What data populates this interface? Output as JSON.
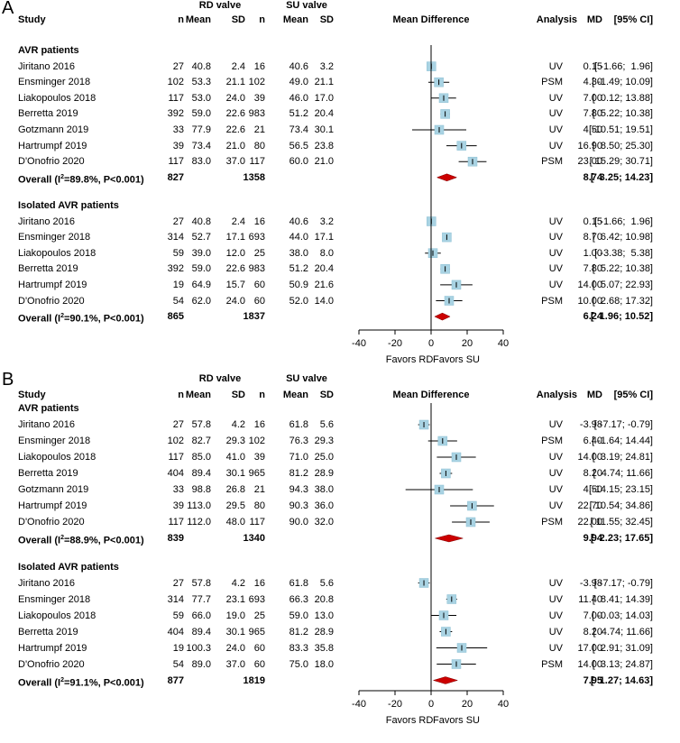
{
  "colors": {
    "box": "#a9d3e3",
    "boxStroke": "#8cbfd3",
    "diamond": "#cc0000",
    "line": "#000000"
  },
  "chart_data": [
    {
      "type": "forest",
      "panel": "A",
      "headers": {
        "group1": "RD valve",
        "group2": "SU valve",
        "study": "Study",
        "n1": "n",
        "mean1": "Mean",
        "sd1": "SD",
        "n2": "n",
        "mean2": "Mean",
        "sd2": "SD",
        "plot": "Mean Difference",
        "analysis": "Analysis",
        "md": "MD",
        "ci": "[95% CI]"
      },
      "axis": {
        "min": -40,
        "max": 40,
        "ticks": [
          -40,
          -20,
          0,
          20,
          40
        ],
        "favor_left": "Favors RD",
        "favor_right": "Favors SU"
      },
      "subgroups": [
        {
          "title": "AVR patients",
          "studies": [
            {
              "study": "Jiritano 2016",
              "n1": 27,
              "mean1": "40.8",
              "sd1": "2.4",
              "n2": 16,
              "mean2": "40.6",
              "sd2": "3.2",
              "analysis": "UV",
              "md": 0.15,
              "lo": -1.66,
              "hi": 1.96,
              "md_text": "0.15",
              "ci_text": "[ -1.66;  1.96]"
            },
            {
              "study": "Ensminger 2018",
              "n1": 102,
              "mean1": "53.3",
              "sd1": "21.1",
              "n2": 102,
              "mean2": "49.0",
              "sd2": "21.1",
              "analysis": "PSM",
              "md": 4.3,
              "lo": -1.49,
              "hi": 10.09,
              "md_text": "4.30",
              "ci_text": "[ -1.49; 10.09]"
            },
            {
              "study": "Liakopoulos 2018",
              "n1": 117,
              "mean1": "53.0",
              "sd1": "24.0",
              "n2": 39,
              "mean2": "46.0",
              "sd2": "17.0",
              "analysis": "UV",
              "md": 7.0,
              "lo": 0.12,
              "hi": 13.88,
              "md_text": "7.00",
              "ci_text": "[  0.12; 13.88]"
            },
            {
              "study": "Berretta 2019",
              "n1": 392,
              "mean1": "59.0",
              "sd1": "22.6",
              "n2": 983,
              "mean2": "51.2",
              "sd2": "20.4",
              "analysis": "UV",
              "md": 7.8,
              "lo": 5.22,
              "hi": 10.38,
              "md_text": "7.80",
              "ci_text": "[  5.22; 10.38]"
            },
            {
              "study": "Gotzmann 2019",
              "n1": 33,
              "mean1": "77.9",
              "sd1": "22.6",
              "n2": 21,
              "mean2": "73.4",
              "sd2": "30.1",
              "analysis": "UV",
              "md": 4.5,
              "lo": -10.51,
              "hi": 19.51,
              "md_text": "4.50",
              "ci_text": "[-10.51; 19.51]"
            },
            {
              "study": "Hartrumpf 2019",
              "n1": 39,
              "mean1": "73.4",
              "sd1": "21.0",
              "n2": 80,
              "mean2": "56.5",
              "sd2": "23.8",
              "analysis": "UV",
              "md": 16.9,
              "lo": 8.5,
              "hi": 25.3,
              "md_text": "16.90",
              "ci_text": "[  8.50; 25.30]"
            },
            {
              "study": "D'Onofrio 2020",
              "n1": 117,
              "mean1": "83.0",
              "sd1": "37.0",
              "n2": 117,
              "mean2": "60.0",
              "sd2": "21.0",
              "analysis": "PSM",
              "md": 23.0,
              "lo": 15.29,
              "hi": 30.71,
              "md_text": "23.00",
              "ci_text": "[ 15.29; 30.71]"
            }
          ],
          "overall": {
            "label_pre": "Overall (I",
            "sup": "2",
            "label_post": "=89.8%, P<0.001)",
            "n1": 827,
            "n2": 1358,
            "md": 8.74,
            "lo": 3.25,
            "hi": 14.23,
            "md_text": "8.74",
            "ci_text": "[  3.25; 14.23]"
          }
        },
        {
          "title": "Isolated AVR patients",
          "studies": [
            {
              "study": "Jiritano 2016",
              "n1": 27,
              "mean1": "40.8",
              "sd1": "2.4",
              "n2": 16,
              "mean2": "40.6",
              "sd2": "3.2",
              "analysis": "UV",
              "md": 0.15,
              "lo": -1.66,
              "hi": 1.96,
              "md_text": "0.15",
              "ci_text": "[ -1.66;  1.96]"
            },
            {
              "study": "Ensminger 2018",
              "n1": 314,
              "mean1": "52.7",
              "sd1": "17.1",
              "n2": 693,
              "mean2": "44.0",
              "sd2": "17.1",
              "analysis": "UV",
              "md": 8.7,
              "lo": 6.42,
              "hi": 10.98,
              "md_text": "8.70",
              "ci_text": "[  6.42; 10.98]"
            },
            {
              "study": "Liakopoulos 2018",
              "n1": 59,
              "mean1": "39.0",
              "sd1": "12.0",
              "n2": 25,
              "mean2": "38.0",
              "sd2": "8.0",
              "analysis": "UV",
              "md": 1.0,
              "lo": -3.38,
              "hi": 5.38,
              "md_text": "1.00",
              "ci_text": "[ -3.38;  5.38]"
            },
            {
              "study": "Berretta 2019",
              "n1": 392,
              "mean1": "59.0",
              "sd1": "22.6",
              "n2": 983,
              "mean2": "51.2",
              "sd2": "20.4",
              "analysis": "UV",
              "md": 7.8,
              "lo": 5.22,
              "hi": 10.38,
              "md_text": "7.80",
              "ci_text": "[  5.22; 10.38]"
            },
            {
              "study": "Hartrumpf 2019",
              "n1": 19,
              "mean1": "64.9",
              "sd1": "15.7",
              "n2": 60,
              "mean2": "50.9",
              "sd2": "21.6",
              "analysis": "UV",
              "md": 14.0,
              "lo": 5.07,
              "hi": 22.93,
              "md_text": "14.00",
              "ci_text": "[  5.07; 22.93]"
            },
            {
              "study": "D'Onofrio 2020",
              "n1": 54,
              "mean1": "62.0",
              "sd1": "24.0",
              "n2": 60,
              "mean2": "52.0",
              "sd2": "14.0",
              "analysis": "PSM",
              "md": 10.0,
              "lo": 2.68,
              "hi": 17.32,
              "md_text": "10.00",
              "ci_text": "[  2.68; 17.32]"
            }
          ],
          "overall": {
            "label_pre": "Overall (I",
            "sup": "2",
            "label_post": "=90.1%, P<0.001)",
            "n1": 865,
            "n2": 1837,
            "md": 6.24,
            "lo": 1.96,
            "hi": 10.52,
            "md_text": "6.24",
            "ci_text": "[  1.96; 10.52]"
          }
        }
      ]
    },
    {
      "type": "forest",
      "panel": "B",
      "headers": {
        "group1": "RD valve",
        "group2": "SU valve",
        "study": "Study",
        "n1": "n",
        "mean1": "Mean",
        "sd1": "SD",
        "n2": "n",
        "mean2": "Mean",
        "sd2": "SD",
        "plot": "Mean Difference",
        "analysis": "Analysis",
        "md": "MD",
        "ci": "[95% CI]"
      },
      "axis": {
        "min": -40,
        "max": 40,
        "ticks": [
          -40,
          -20,
          0,
          20,
          40
        ],
        "favor_left": "Favors RD",
        "favor_right": "Favors SU"
      },
      "subgroups": [
        {
          "title": "AVR patients",
          "studies": [
            {
              "study": "Jiritano 2016",
              "n1": 27,
              "mean1": "57.8",
              "sd1": "4.2",
              "n2": 16,
              "mean2": "61.8",
              "sd2": "5.6",
              "analysis": "UV",
              "md": -3.98,
              "lo": -7.17,
              "hi": -0.79,
              "md_text": "-3.98",
              "ci_text": "[ -7.17; -0.79]"
            },
            {
              "study": "Ensminger 2018",
              "n1": 102,
              "mean1": "82.7",
              "sd1": "29.3",
              "n2": 102,
              "mean2": "76.3",
              "sd2": "29.3",
              "analysis": "PSM",
              "md": 6.4,
              "lo": -1.64,
              "hi": 14.44,
              "md_text": "6.40",
              "ci_text": "[ -1.64; 14.44]"
            },
            {
              "study": "Liakopoulos 2018",
              "n1": 117,
              "mean1": "85.0",
              "sd1": "41.0",
              "n2": 39,
              "mean2": "71.0",
              "sd2": "25.0",
              "analysis": "UV",
              "md": 14.0,
              "lo": 3.19,
              "hi": 24.81,
              "md_text": "14.00",
              "ci_text": "[  3.19; 24.81]"
            },
            {
              "study": "Berretta 2019",
              "n1": 404,
              "mean1": "89.4",
              "sd1": "30.1",
              "n2": 965,
              "mean2": "81.2",
              "sd2": "28.9",
              "analysis": "UV",
              "md": 8.2,
              "lo": 4.74,
              "hi": 11.66,
              "md_text": "8.20",
              "ci_text": "[  4.74; 11.66]"
            },
            {
              "study": "Gotzmann 2019",
              "n1": 33,
              "mean1": "98.8",
              "sd1": "26.8",
              "n2": 21,
              "mean2": "94.3",
              "sd2": "38.0",
              "analysis": "UV",
              "md": 4.5,
              "lo": -14.15,
              "hi": 23.15,
              "md_text": "4.50",
              "ci_text": "[-14.15; 23.15]"
            },
            {
              "study": "Hartrumpf 2019",
              "n1": 39,
              "mean1": "113.0",
              "sd1": "29.5",
              "n2": 80,
              "mean2": "90.3",
              "sd2": "36.0",
              "analysis": "UV",
              "md": 22.7,
              "lo": 10.54,
              "hi": 34.86,
              "md_text": "22.70",
              "ci_text": "[ 10.54; 34.86]"
            },
            {
              "study": "D'Onofrio 2020",
              "n1": 117,
              "mean1": "112.0",
              "sd1": "48.0",
              "n2": 117,
              "mean2": "90.0",
              "sd2": "32.0",
              "analysis": "PSM",
              "md": 22.0,
              "lo": 11.55,
              "hi": 32.45,
              "md_text": "22.00",
              "ci_text": "[ 11.55; 32.45]"
            }
          ],
          "overall": {
            "label_pre": "Overall (I",
            "sup": "2",
            "label_post": "=88.9%, P<0.001)",
            "n1": 839,
            "n2": 1340,
            "md": 9.94,
            "lo": 2.23,
            "hi": 17.65,
            "md_text": "9.94",
            "ci_text": "[  2.23; 17.65]"
          }
        },
        {
          "title": "Isolated AVR patients",
          "studies": [
            {
              "study": "Jiritano 2016",
              "n1": 27,
              "mean1": "57.8",
              "sd1": "4.2",
              "n2": 16,
              "mean2": "61.8",
              "sd2": "5.6",
              "analysis": "UV",
              "md": -3.98,
              "lo": -7.17,
              "hi": -0.79,
              "md_text": "-3.98",
              "ci_text": "[ -7.17; -0.79]"
            },
            {
              "study": "Ensminger 2018",
              "n1": 314,
              "mean1": "77.7",
              "sd1": "23.1",
              "n2": 693,
              "mean2": "66.3",
              "sd2": "20.8",
              "analysis": "UV",
              "md": 11.4,
              "lo": 8.41,
              "hi": 14.39,
              "md_text": "11.40",
              "ci_text": "[  8.41; 14.39]"
            },
            {
              "study": "Liakopoulos 2018",
              "n1": 59,
              "mean1": "66.0",
              "sd1": "19.0",
              "n2": 25,
              "mean2": "59.0",
              "sd2": "13.0",
              "analysis": "UV",
              "md": 7.0,
              "lo": -0.03,
              "hi": 14.03,
              "md_text": "7.00",
              "ci_text": "[ -0.03; 14.03]"
            },
            {
              "study": "Berretta 2019",
              "n1": 404,
              "mean1": "89.4",
              "sd1": "30.1",
              "n2": 965,
              "mean2": "81.2",
              "sd2": "28.9",
              "analysis": "UV",
              "md": 8.2,
              "lo": 4.74,
              "hi": 11.66,
              "md_text": "8.20",
              "ci_text": "[  4.74; 11.66]"
            },
            {
              "study": "Hartrumpf 2019",
              "n1": 19,
              "mean1": "100.3",
              "sd1": "24.0",
              "n2": 60,
              "mean2": "83.3",
              "sd2": "35.8",
              "analysis": "UV",
              "md": 17.0,
              "lo": 2.91,
              "hi": 31.09,
              "md_text": "17.00",
              "ci_text": "[  2.91; 31.09]"
            },
            {
              "study": "D'Onofrio 2020",
              "n1": 54,
              "mean1": "89.0",
              "sd1": "37.0",
              "n2": 60,
              "mean2": "75.0",
              "sd2": "18.0",
              "analysis": "PSM",
              "md": 14.0,
              "lo": 3.13,
              "hi": 24.87,
              "md_text": "14.00",
              "ci_text": "[  3.13; 24.87]"
            }
          ],
          "overall": {
            "label_pre": "Overall (I",
            "sup": "2",
            "label_post": "=91.1%, P<0.001)",
            "n1": 877,
            "n2": 1819,
            "md": 7.95,
            "lo": 1.27,
            "hi": 14.63,
            "md_text": "7.95",
            "ci_text": "[  1.27; 14.63]"
          }
        }
      ]
    }
  ]
}
